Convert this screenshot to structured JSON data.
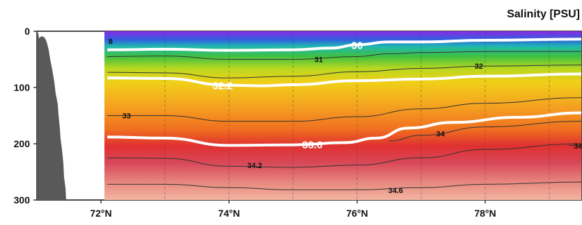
{
  "chart_data": {
    "type": "heatmap",
    "title": "Salinity [PSU]",
    "xlabel": "",
    "ylabel": "",
    "x_ticks": [
      "72°N",
      "74°N",
      "76°N",
      "78°N"
    ],
    "x_tick_values": [
      72,
      74,
      76,
      78
    ],
    "y_ticks": [
      "0",
      "100",
      "200",
      "300"
    ],
    "y_tick_values": [
      0,
      100,
      200,
      300
    ],
    "xlim": [
      71.0,
      79.5
    ],
    "ylim": [
      0,
      300
    ],
    "grid": false,
    "station_lines_x": [
      73,
      74,
      75,
      76,
      77,
      78,
      79
    ],
    "colors": {
      "fresh": "#8a2be2",
      "mid": "#f0c020",
      "salty": "#f0a090",
      "bathymetry": "#595959",
      "major_contour": "#ffffff",
      "minor_contour": "#333333"
    },
    "contours": [
      {
        "level": "30",
        "major": true,
        "depth": [
          [
            72.1,
            33
          ],
          [
            73,
            32
          ],
          [
            74,
            34
          ],
          [
            75,
            33
          ],
          [
            75.6,
            30
          ],
          [
            76,
            24
          ],
          [
            76.5,
            19
          ],
          [
            77,
            19
          ],
          [
            78,
            16
          ],
          [
            79.5,
            14
          ]
        ],
        "label_at": [
          76.0,
          25
        ]
      },
      {
        "level": "31",
        "major": false,
        "depth": [
          [
            72.1,
            45
          ],
          [
            73,
            44
          ],
          [
            74,
            50
          ],
          [
            75,
            50
          ],
          [
            76,
            45
          ],
          [
            76.5,
            40
          ],
          [
            77,
            38
          ],
          [
            78,
            36
          ],
          [
            79.5,
            36
          ]
        ],
        "label_at": [
          75.4,
          50
        ]
      },
      {
        "level": "32.2",
        "major": true,
        "depth": [
          [
            72.1,
            83
          ],
          [
            73,
            84
          ],
          [
            74,
            96
          ],
          [
            74.5,
            97
          ],
          [
            75,
            95
          ],
          [
            76,
            88
          ],
          [
            77,
            85
          ],
          [
            78,
            80
          ],
          [
            79.5,
            76
          ]
        ],
        "label_at": [
          73.9,
          97
        ]
      },
      {
        "level": "32",
        "major": false,
        "depth": [
          [
            72.1,
            73
          ],
          [
            73,
            74
          ],
          [
            74,
            83
          ],
          [
            75,
            80
          ],
          [
            76,
            72
          ],
          [
            77,
            66
          ],
          [
            78,
            62
          ],
          [
            79.5,
            60
          ]
        ],
        "label_at": [
          77.9,
          62
        ]
      },
      {
        "level": "33",
        "major": false,
        "depth": [
          [
            72.1,
            150
          ],
          [
            73,
            150
          ],
          [
            74,
            160
          ],
          [
            75,
            160
          ],
          [
            76,
            152
          ],
          [
            77,
            138
          ],
          [
            78,
            128
          ],
          [
            79.5,
            118
          ]
        ],
        "label_at": [
          72.4,
          150
        ]
      },
      {
        "level": "33.6",
        "major": true,
        "depth": [
          [
            72.1,
            188
          ],
          [
            73,
            190
          ],
          [
            74,
            203
          ],
          [
            75,
            202
          ],
          [
            75.8,
            198
          ],
          [
            76.3,
            190
          ],
          [
            76.8,
            172
          ],
          [
            77.5,
            162
          ],
          [
            78.5,
            153
          ],
          [
            79.5,
            145
          ]
        ],
        "label_at": [
          75.3,
          202
        ]
      },
      {
        "level": "34",
        "major": false,
        "depth": [
          [
            76.5,
            195
          ],
          [
            77,
            185
          ],
          [
            78,
            170
          ],
          [
            79.5,
            160
          ]
        ],
        "label_at": [
          77.3,
          182
        ]
      },
      {
        "level": "34.2",
        "major": false,
        "depth": [
          [
            72.1,
            225
          ],
          [
            73,
            226
          ],
          [
            74,
            240
          ],
          [
            75,
            242
          ],
          [
            76,
            238
          ],
          [
            77,
            225
          ],
          [
            78,
            210
          ],
          [
            79.5,
            200
          ]
        ],
        "label_at": [
          74.4,
          238
        ]
      },
      {
        "level": "34.6",
        "major": false,
        "depth": [
          [
            72.1,
            272
          ],
          [
            73,
            272
          ],
          [
            74,
            278
          ],
          [
            75,
            282
          ],
          [
            76,
            282
          ],
          [
            77,
            278
          ],
          [
            78,
            272
          ],
          [
            79.5,
            268
          ]
        ],
        "label_at": [
          76.6,
          283
        ]
      },
      {
        "level": "34",
        "major": false,
        "depth": [
          [
            79.3,
            203
          ],
          [
            79.5,
            203
          ]
        ],
        "label_at": [
          79.45,
          204
        ]
      }
    ],
    "small_label": {
      "text": "8",
      "at": [
        72.15,
        18
      ]
    }
  }
}
